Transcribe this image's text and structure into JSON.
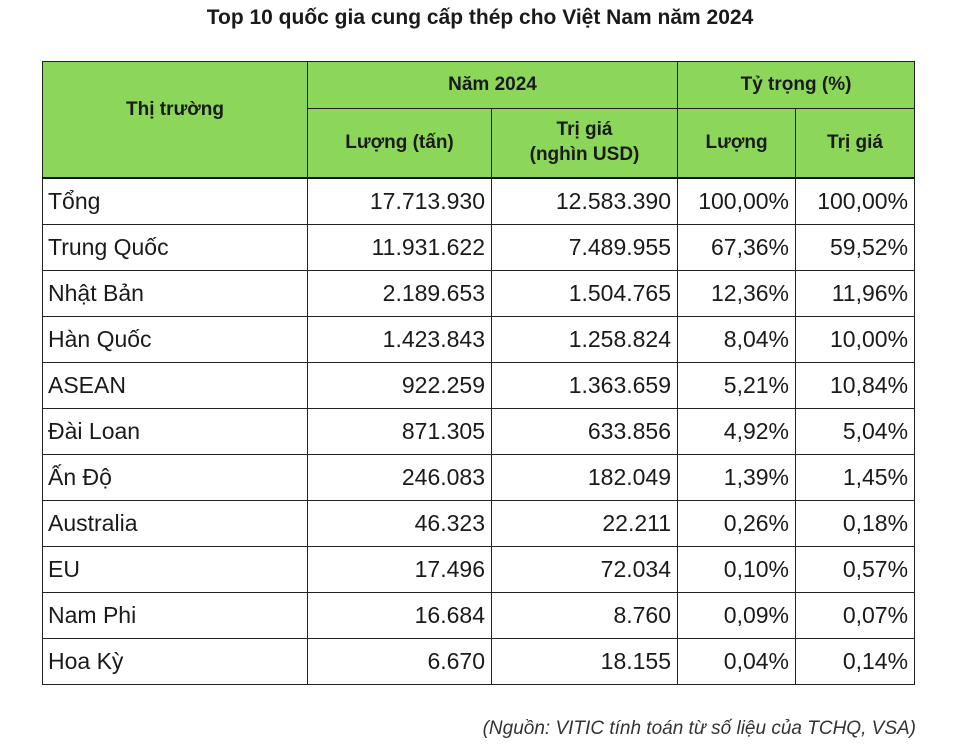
{
  "title": "Top 10 quốc gia cung cấp thép cho Việt Nam năm 2024",
  "source": "(Nguồn: VITIC tính toán từ số liệu của TCHQ, VSA)",
  "chart_data": {
    "type": "table",
    "headers": {
      "market": "Thị trường",
      "group_year": "Năm 2024",
      "group_share": "Tỷ trọng (%)",
      "volume": "Lượng (tấn)",
      "value_line1": "Trị giá",
      "value_line2": "(nghìn USD)",
      "share_volume": "Lượng",
      "share_value": "Trị giá"
    },
    "rows": [
      {
        "market": "Tổng",
        "volume": "17.713.930",
        "value": "12.583.390",
        "share_volume": "100,00%",
        "share_value": "100,00%"
      },
      {
        "market": "Trung Quốc",
        "volume": "11.931.622",
        "value": "7.489.955",
        "share_volume": "67,36%",
        "share_value": "59,52%"
      },
      {
        "market": "Nhật Bản",
        "volume": "2.189.653",
        "value": "1.504.765",
        "share_volume": "12,36%",
        "share_value": "11,96%"
      },
      {
        "market": "Hàn Quốc",
        "volume": "1.423.843",
        "value": "1.258.824",
        "share_volume": "8,04%",
        "share_value": "10,00%"
      },
      {
        "market": "ASEAN",
        "volume": "922.259",
        "value": "1.363.659",
        "share_volume": "5,21%",
        "share_value": "10,84%"
      },
      {
        "market": "Đài Loan",
        "volume": "871.305",
        "value": "633.856",
        "share_volume": "4,92%",
        "share_value": "5,04%"
      },
      {
        "market": "Ấn Độ",
        "volume": "246.083",
        "value": "182.049",
        "share_volume": "1,39%",
        "share_value": "1,45%"
      },
      {
        "market": "Australia",
        "volume": "46.323",
        "value": "22.211",
        "share_volume": "0,26%",
        "share_value": "0,18%"
      },
      {
        "market": "EU",
        "volume": "17.496",
        "value": "72.034",
        "share_volume": "0,10%",
        "share_value": "0,57%"
      },
      {
        "market": "Nam Phi",
        "volume": "16.684",
        "value": "8.760",
        "share_volume": "0,09%",
        "share_value": "0,07%"
      },
      {
        "market": "Hoa Kỳ",
        "volume": "6.670",
        "value": "18.155",
        "share_volume": "0,04%",
        "share_value": "0,14%"
      }
    ],
    "header_color": "#8cd65a"
  }
}
